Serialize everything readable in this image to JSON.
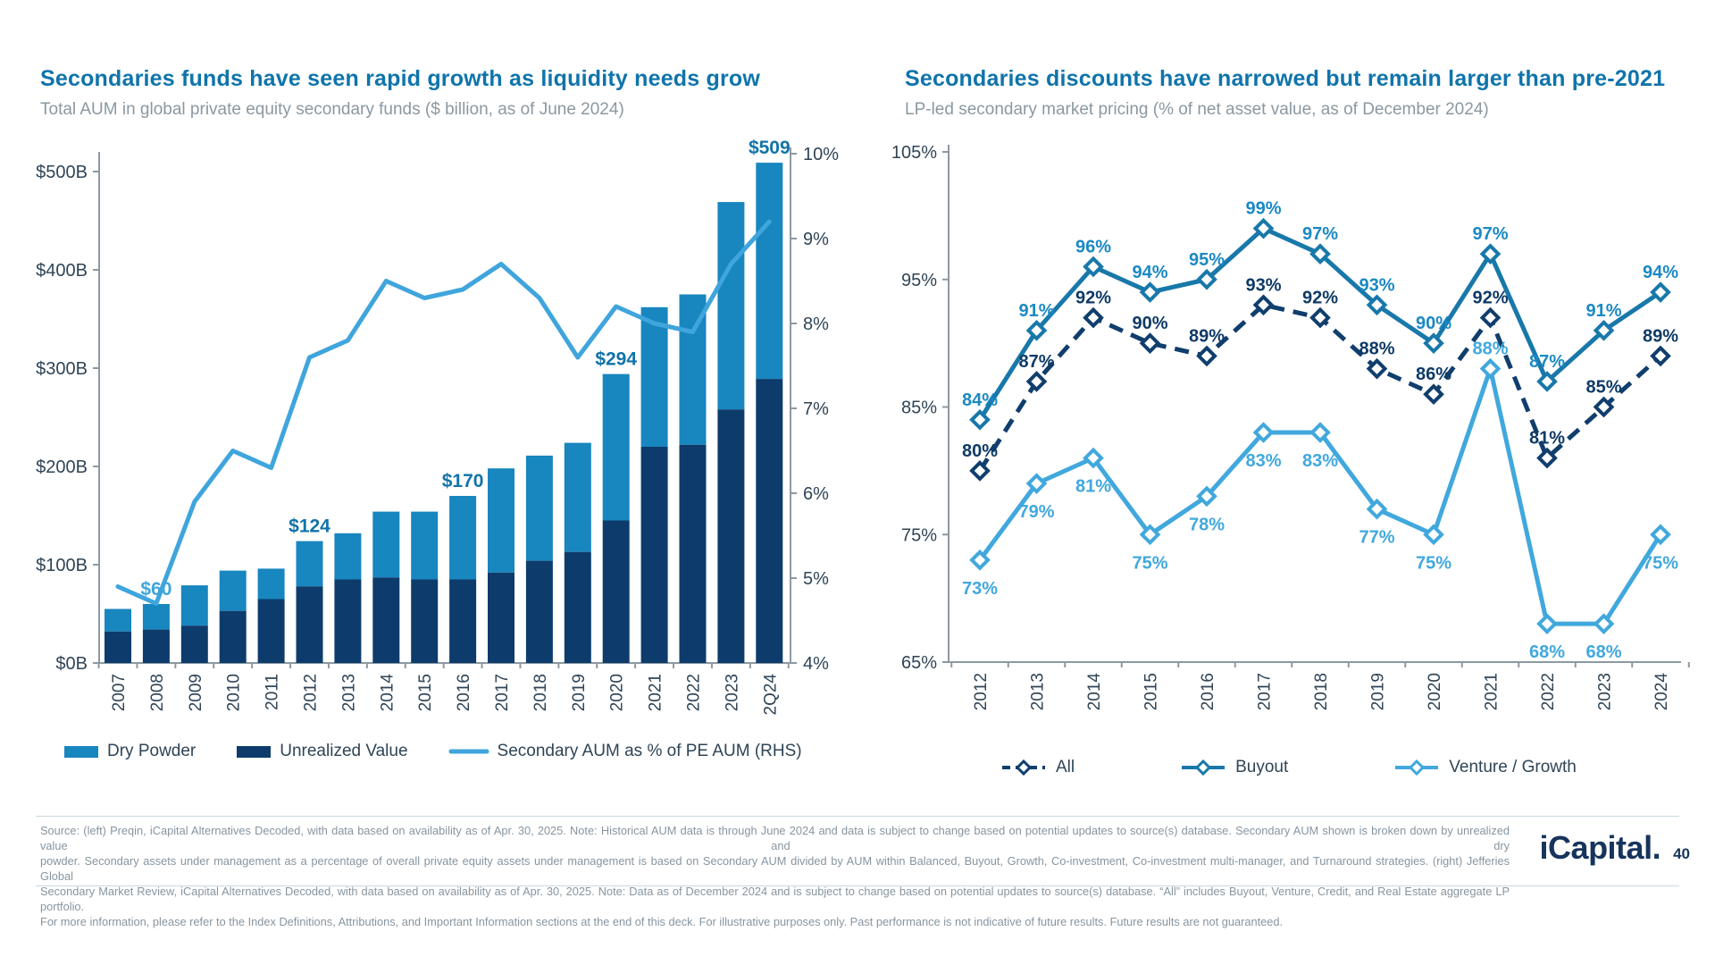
{
  "chart_data": [
    {
      "type": "bar",
      "title": "Secondaries funds have seen rapid growth as liquidity needs grow",
      "subtitle": "Total AUM in global private equity secondary funds ($ billion, as of June 2024)",
      "categories": [
        "2007",
        "2008",
        "2009",
        "2010",
        "2011",
        "2012",
        "2013",
        "2014",
        "2015",
        "2016",
        "2017",
        "2018",
        "2019",
        "2020",
        "2021",
        "2022",
        "2023",
        "2Q24"
      ],
      "series": [
        {
          "name": "Dry Powder",
          "type": "bar",
          "color": "#1886bf",
          "values": [
            23,
            26,
            41,
            41,
            31,
            46,
            47,
            67,
            69,
            85,
            106,
            107,
            111,
            149,
            142,
            153,
            211,
            220
          ]
        },
        {
          "name": "Unrealized Value",
          "type": "bar",
          "color": "#0d3c6c",
          "values": [
            32,
            34,
            38,
            53,
            65,
            78,
            85,
            87,
            85,
            85,
            92,
            104,
            113,
            145,
            220,
            222,
            258,
            289
          ]
        },
        {
          "name": "Secondary AUM as % of PE AUM (RHS)",
          "type": "line",
          "axis": "right",
          "color": "#3fa5dc",
          "values": [
            4.9,
            4.7,
            5.9,
            6.5,
            6.3,
            7.6,
            7.8,
            8.5,
            8.3,
            8.4,
            8.7,
            8.3,
            7.6,
            8.2,
            8.0,
            7.9,
            8.7,
            9.2
          ]
        }
      ],
      "stack_totals": [
        55,
        60,
        79,
        94,
        96,
        124,
        132,
        154,
        154,
        170,
        198,
        211,
        224,
        294,
        362,
        375,
        469,
        509
      ],
      "total_labels": [
        {
          "index": 1,
          "text": "$60",
          "color": "#3fa5dc"
        },
        {
          "index": 5,
          "text": "$124",
          "color": "#1173a9"
        },
        {
          "index": 9,
          "text": "$170",
          "color": "#1173a9"
        },
        {
          "index": 13,
          "text": "$294",
          "color": "#1173a9"
        },
        {
          "index": 17,
          "text": "$509",
          "color": "#1173a9"
        }
      ],
      "left_axis": {
        "min": 0,
        "max": 500,
        "step": 100,
        "tick_format": "$[v]B",
        "ticks": [
          "$0B",
          "$100B",
          "$200B",
          "$300B",
          "$400B",
          "$500B"
        ]
      },
      "right_axis": {
        "min": 4,
        "max": 10,
        "step": 1,
        "tick_format": "[v]%",
        "ticks": [
          "4%",
          "5%",
          "6%",
          "7%",
          "8%",
          "9%",
          "10%"
        ]
      },
      "grid": false,
      "legend_position": "bottom"
    },
    {
      "type": "line",
      "title": "Secondaries discounts have narrowed but remain larger than pre-2021",
      "subtitle": "LP-led secondary market pricing (% of net asset value, as of December 2024)",
      "categories": [
        "2012",
        "2013",
        "2014",
        "2015",
        "2016",
        "2017",
        "2018",
        "2019",
        "2020",
        "2021",
        "2022",
        "2023",
        "2024"
      ],
      "series": [
        {
          "name": "All",
          "color": "#103e6d",
          "dashed": true,
          "marker": "diamond",
          "label_color": "#0e3a66",
          "values": [
            80,
            87,
            92,
            90,
            89,
            93,
            92,
            88,
            86,
            92,
            81,
            85,
            89
          ]
        },
        {
          "name": "Buyout",
          "color": "#1878aa",
          "dashed": false,
          "marker": "diamond",
          "label_color": "#1b89c4",
          "values": [
            84,
            91,
            96,
            94,
            95,
            99,
            97,
            93,
            90,
            97,
            87,
            91,
            94
          ]
        },
        {
          "name": "Venture / Growth",
          "color": "#41a8dd",
          "dashed": false,
          "marker": "diamond",
          "label_color": "#41a8dd",
          "values": [
            73,
            79,
            81,
            75,
            78,
            83,
            83,
            77,
            75,
            88,
            68,
            68,
            75
          ],
          "labels_below": true,
          "labels_above_indices": [
            9
          ]
        }
      ],
      "y_axis": {
        "min": 65,
        "max": 105,
        "step": 10,
        "ticks": [
          "65%",
          "75%",
          "85%",
          "95%",
          "105%"
        ]
      },
      "grid": false,
      "legend_position": "bottom",
      "data_labels_suffix": "%"
    }
  ],
  "legend_left": {
    "items": [
      "Dry Powder",
      "Unrealized Value",
      "Secondary AUM as % of PE AUM (RHS)"
    ]
  },
  "legend_right": {
    "items": [
      "All",
      "Buyout",
      "Venture / Growth"
    ]
  },
  "footer": {
    "lines": [
      "Source: (left) Preqin, iCapital Alternatives Decoded, with data based on availability as of Apr. 30, 2025. Note: Historical AUM data is through June 2024 and data is subject to change based on potential updates to source(s) database. Secondary AUM shown is broken down by unrealized value and dry",
      "powder. Secondary assets under management as a percentage of overall private equity assets under management is based on Secondary AUM divided by AUM within Balanced, Buyout, Growth, Co-investment, Co-investment multi-manager, and Turnaround strategies. (right) Jefferies Global",
      "Secondary Market Review, iCapital Alternatives Decoded, with data based on availability as of Apr. 30, 2025. Note: Data as of December 2024 and is subject to change based on potential updates to source(s) database. “All” includes Buyout, Venture, Credit, and Real Estate aggregate LP portfolio.",
      "For more information, please refer to the Index Definitions, Attributions, and Important Information sections at the end of this deck. For illustrative purposes only. Past performance is not indicative of future results. Future results are not guaranteed."
    ]
  },
  "logo": {
    "wordmark": "iCapital.",
    "page_number": "40"
  },
  "colors": {
    "title_blue": "#0f74ab",
    "subtitle_gray": "#8b98a1",
    "axis_text": "#2f4456",
    "axis_line": "#8c99a3",
    "bar_light": "#1886bf",
    "bar_navy": "#0d3c6c",
    "aum_line": "#3fa5dc",
    "all_line": "#103e6d",
    "buyout_line": "#1878aa",
    "venture_line": "#41a8dd",
    "footer_gray": "#8795a0",
    "logo_navy": "#16345c"
  }
}
